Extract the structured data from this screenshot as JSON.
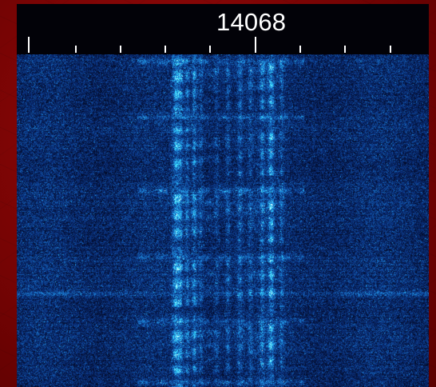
{
  "window": {
    "frequency_label": "14068"
  },
  "colors": {
    "background_red": "#7a0000",
    "scale_bg": "#020208",
    "scale_text": "#ffffff",
    "waterfall_low": "#071a52",
    "waterfall_mid": "#1b63c9",
    "waterfall_high": "#64f0ff"
  }
}
